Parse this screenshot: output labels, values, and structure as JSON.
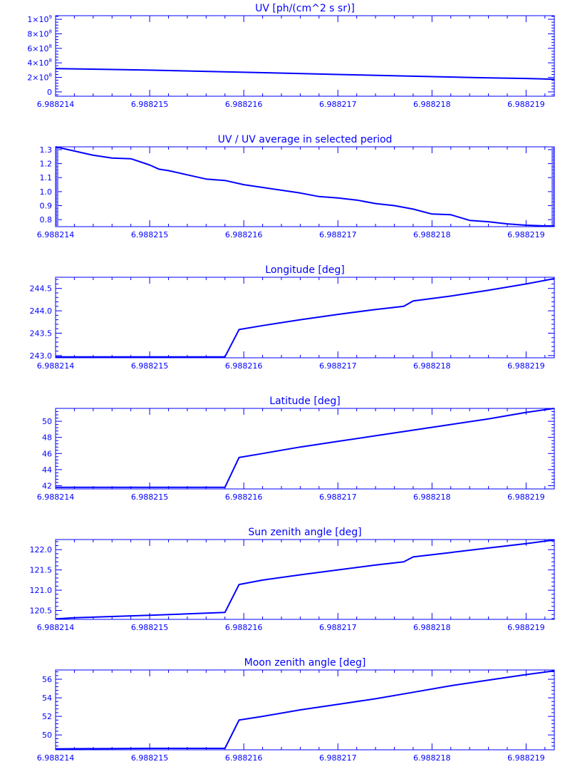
{
  "chart_data": [
    {
      "type": "line",
      "title": "UV [ph/(cm^2 s sr)]",
      "xlim": [
        6.988214,
        6.9882193
      ],
      "ylim": [
        -60000000,
        1050000000
      ],
      "xticks": [
        6.988214,
        6.988215,
        6.988216,
        6.988217,
        6.988218,
        6.988219
      ],
      "xtick_labels": [
        "6.988214",
        "6.988215",
        "6.988216",
        "6.988217",
        "6.988218",
        "6.988219"
      ],
      "yticks": [
        0,
        200000000,
        400000000,
        600000000,
        800000000,
        1000000000
      ],
      "ytick_labels": [
        {
          "mantissa": "0",
          "exponent": ""
        },
        {
          "mantissa": "2×10",
          "exponent": "8"
        },
        {
          "mantissa": "4×10",
          "exponent": "8"
        },
        {
          "mantissa": "6×10",
          "exponent": "8"
        },
        {
          "mantissa": "8×10",
          "exponent": "8"
        },
        {
          "mantissa": "1×10",
          "exponent": "9"
        }
      ],
      "x": [
        6.988214,
        6.9882145,
        6.988215,
        6.9882155,
        6.988216,
        6.9882165,
        6.988217,
        6.9882175,
        6.988218,
        6.9882185,
        6.988219,
        6.9882193
      ],
      "y": [
        320000000,
        310000000,
        300000000,
        285000000,
        270000000,
        255000000,
        240000000,
        225000000,
        210000000,
        195000000,
        185000000,
        175000000
      ],
      "grid": false
    },
    {
      "type": "line",
      "title": "UV / UV average in selected period",
      "xlim": [
        6.988214,
        6.9882193
      ],
      "ylim": [
        0.75,
        1.32
      ],
      "xticks": [
        6.988214,
        6.988215,
        6.988216,
        6.988217,
        6.988218,
        6.988219
      ],
      "xtick_labels": [
        "6.988214",
        "6.988215",
        "6.988216",
        "6.988217",
        "6.988218",
        "6.988219"
      ],
      "yticks": [
        0.8,
        0.9,
        1.0,
        1.1,
        1.2,
        1.3
      ],
      "ytick_labels": [
        "0.8",
        "0.9",
        "1.0",
        "1.1",
        "1.2",
        "1.3"
      ],
      "x": [
        6.988214,
        6.9882142,
        6.9882144,
        6.9882146,
        6.9882148,
        6.988215,
        6.9882151,
        6.9882152,
        6.9882154,
        6.9882156,
        6.9882158,
        6.988216,
        6.9882162,
        6.9882164,
        6.9882166,
        6.9882168,
        6.988217,
        6.9882172,
        6.9882174,
        6.9882176,
        6.9882178,
        6.988218,
        6.9882182,
        6.9882184,
        6.9882186,
        6.9882188,
        6.988219,
        6.9882192,
        6.9882193
      ],
      "y": [
        1.32,
        1.29,
        1.26,
        1.24,
        1.235,
        1.19,
        1.16,
        1.15,
        1.12,
        1.09,
        1.08,
        1.05,
        1.03,
        1.01,
        0.99,
        0.965,
        0.955,
        0.94,
        0.915,
        0.9,
        0.875,
        0.84,
        0.835,
        0.795,
        0.785,
        0.77,
        0.76,
        0.755,
        0.755
      ],
      "grid": false
    },
    {
      "type": "line",
      "title": "Longitude [deg]",
      "xlim": [
        6.988214,
        6.9882193
      ],
      "ylim": [
        242.95,
        244.75
      ],
      "xticks": [
        6.988214,
        6.988215,
        6.988216,
        6.988217,
        6.988218,
        6.988219
      ],
      "xtick_labels": [
        "6.988214",
        "6.988215",
        "6.988216",
        "6.988217",
        "6.988218",
        "6.988219"
      ],
      "yticks": [
        243.0,
        243.5,
        244.0,
        244.5
      ],
      "ytick_labels": [
        "243.0",
        "243.5",
        "244.0",
        "244.5"
      ],
      "x": [
        6.988214,
        6.9882158,
        6.98821595,
        6.9882162,
        6.9882166,
        6.988217,
        6.9882174,
        6.9882177,
        6.9882178,
        6.9882182,
        6.9882186,
        6.988219,
        6.9882193
      ],
      "y": [
        242.97,
        242.97,
        243.58,
        243.67,
        243.8,
        243.92,
        244.03,
        244.1,
        244.22,
        244.33,
        244.46,
        244.6,
        244.72
      ],
      "grid": false
    },
    {
      "type": "line",
      "title": "Latitude [deg]",
      "xlim": [
        6.988214,
        6.9882193
      ],
      "ylim": [
        41.6,
        51.6
      ],
      "xticks": [
        6.988214,
        6.988215,
        6.988216,
        6.988217,
        6.988218,
        6.988219
      ],
      "xtick_labels": [
        "6.988214",
        "6.988215",
        "6.988216",
        "6.988217",
        "6.988218",
        "6.988219"
      ],
      "yticks": [
        42,
        44,
        46,
        48,
        50
      ],
      "ytick_labels": [
        "42",
        "44",
        "46",
        "48",
        "50"
      ],
      "x": [
        6.988214,
        6.9882158,
        6.98821595,
        6.9882162,
        6.9882166,
        6.988217,
        6.9882174,
        6.9882178,
        6.9882182,
        6.9882186,
        6.988219,
        6.9882193
      ],
      "y": [
        41.8,
        41.8,
        45.5,
        46.0,
        46.8,
        47.5,
        48.2,
        48.9,
        49.6,
        50.3,
        51.1,
        51.6
      ],
      "grid": false
    },
    {
      "type": "line",
      "title": "Sun zenith angle [deg]",
      "xlim": [
        6.988214,
        6.9882193
      ],
      "ylim": [
        120.28,
        122.25
      ],
      "xticks": [
        6.988214,
        6.988215,
        6.988216,
        6.988217,
        6.988218,
        6.988219
      ],
      "xtick_labels": [
        "6.988214",
        "6.988215",
        "6.988216",
        "6.988217",
        "6.988218",
        "6.988219"
      ],
      "yticks": [
        120.5,
        121.0,
        121.5,
        122.0
      ],
      "ytick_labels": [
        "120.5",
        "121.0",
        "121.5",
        "122.0"
      ],
      "x": [
        6.988214,
        6.9882142,
        6.988215,
        6.9882158,
        6.98821595,
        6.9882162,
        6.9882166,
        6.988217,
        6.9882174,
        6.9882177,
        6.9882178,
        6.9882182,
        6.9882186,
        6.988219,
        6.9882193
      ],
      "y": [
        120.29,
        120.32,
        120.38,
        120.45,
        121.14,
        121.25,
        121.38,
        121.5,
        121.62,
        121.7,
        121.82,
        121.93,
        122.04,
        122.15,
        122.24
      ],
      "grid": false
    },
    {
      "type": "line",
      "title": "Moon zenith angle [deg]",
      "xlim": [
        6.988214,
        6.9882193
      ],
      "ylim": [
        48.4,
        57.0
      ],
      "xticks": [
        6.988214,
        6.988215,
        6.988216,
        6.988217,
        6.988218,
        6.988219
      ],
      "xtick_labels": [
        "6.988214",
        "6.988215",
        "6.988216",
        "6.988217",
        "6.988218",
        "6.988219"
      ],
      "yticks": [
        50,
        52,
        54,
        56
      ],
      "ytick_labels": [
        "50",
        "52",
        "54",
        "56"
      ],
      "x": [
        6.988214,
        6.988215,
        6.9882158,
        6.98821595,
        6.9882162,
        6.9882166,
        6.988217,
        6.9882174,
        6.9882178,
        6.9882182,
        6.9882186,
        6.988219,
        6.9882193
      ],
      "y": [
        48.5,
        48.55,
        48.55,
        51.6,
        52.0,
        52.7,
        53.3,
        53.9,
        54.6,
        55.3,
        55.9,
        56.5,
        56.9
      ],
      "grid": false
    }
  ]
}
